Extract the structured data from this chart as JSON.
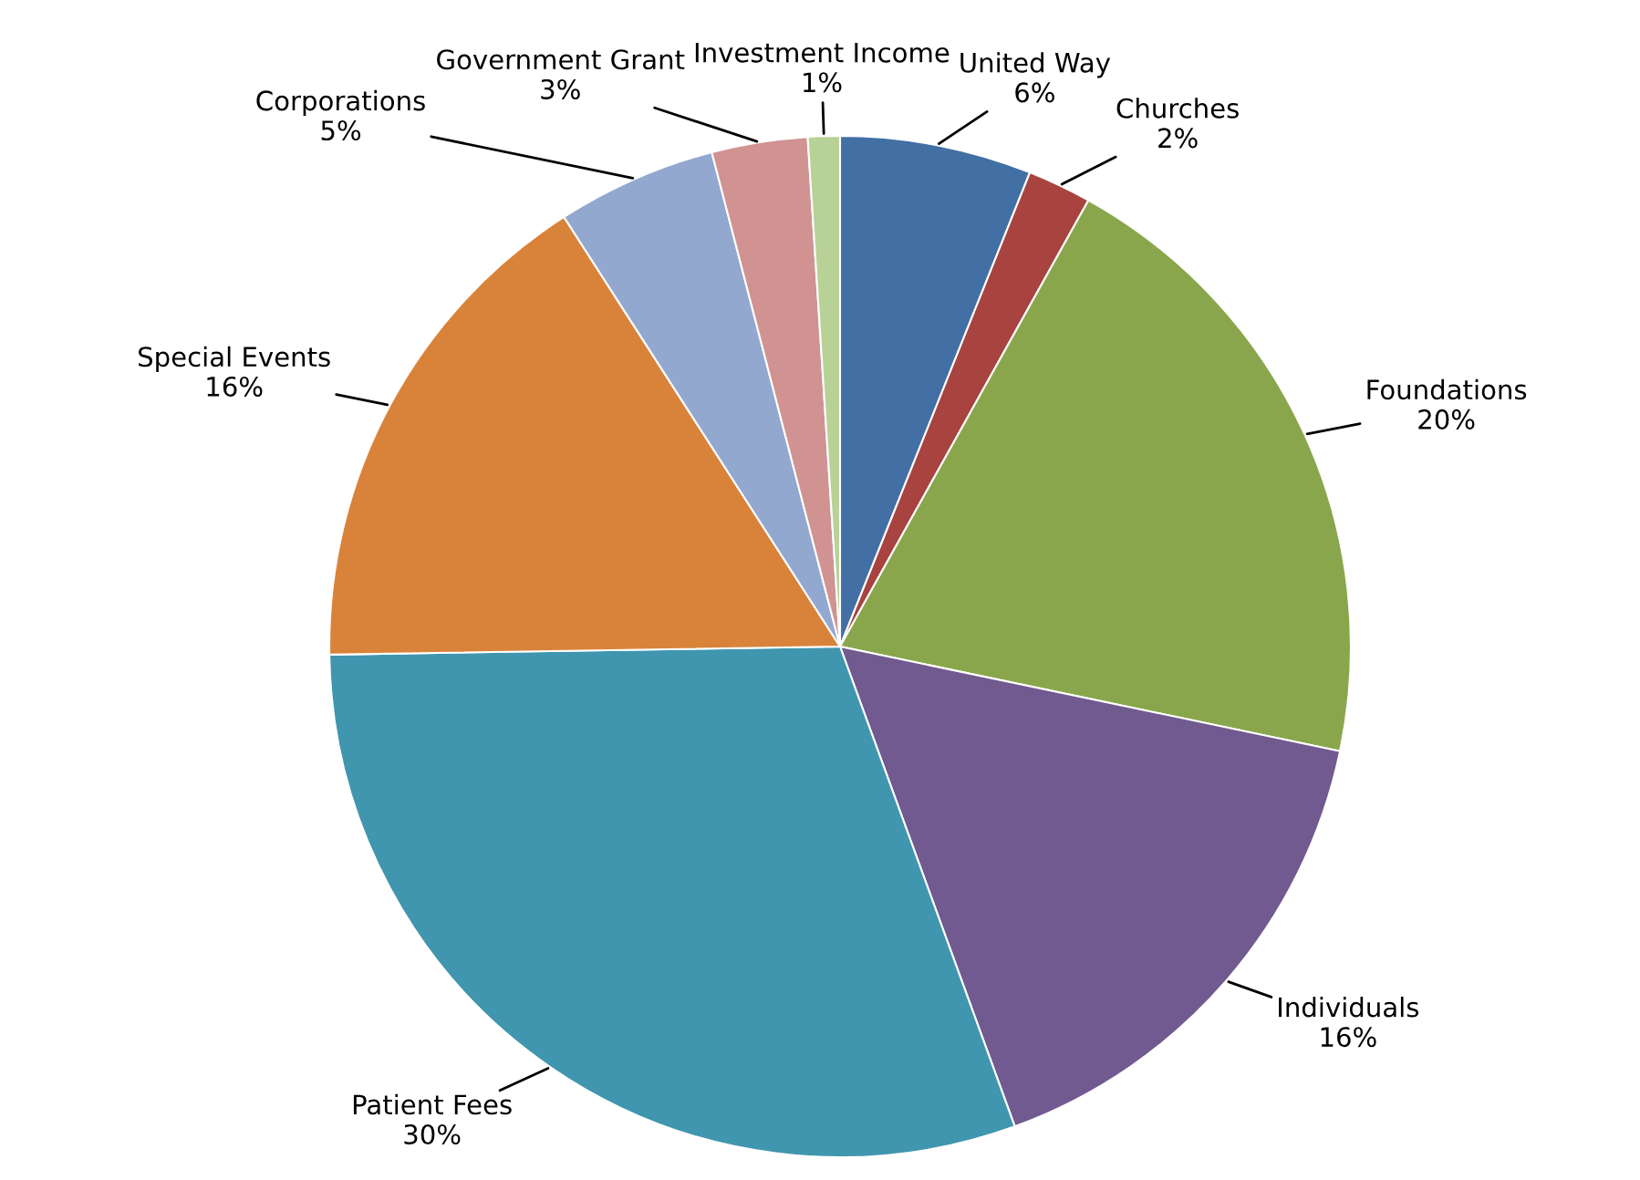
{
  "chart_data": {
    "type": "pie",
    "categories": [
      "United Way",
      "Churches",
      "Foundations",
      "Individuals",
      "Patient Fees",
      "Special Events",
      "Corporations",
      "Government Grant",
      "Investment Income"
    ],
    "values": [
      6,
      2,
      20,
      16,
      30,
      16,
      5,
      3,
      1
    ],
    "value_labels": [
      "6%",
      "2%",
      "20%",
      "16%",
      "30%",
      "16%",
      "5%",
      "3%",
      "1%"
    ],
    "colors": [
      "#4270a5",
      "#a84340",
      "#8aa64c",
      "#715a8f",
      "#4096ae",
      "#d9833a",
      "#92a8cf",
      "#d09392",
      "#b8d197"
    ],
    "legend": false
  }
}
